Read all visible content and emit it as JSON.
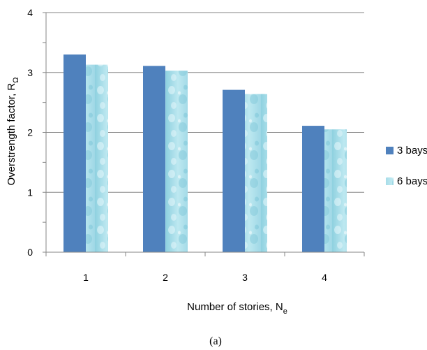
{
  "chart_data": {
    "type": "bar",
    "categories": [
      "1",
      "2",
      "3",
      "4"
    ],
    "series": [
      {
        "name": "3 bays",
        "values": [
          3.3,
          3.11,
          2.71,
          2.11
        ],
        "color": "#4f81bd",
        "fill": "solid"
      },
      {
        "name": "6 bays",
        "values": [
          3.13,
          3.03,
          2.64,
          2.05
        ],
        "color": "#a9dde8",
        "fill": "water-drop texture"
      }
    ],
    "ylim": [
      0,
      4
    ],
    "yticks": [
      "0",
      "1",
      "2",
      "3",
      "4"
    ],
    "xlabel": "Number of stories, N",
    "xlabel_sub": "e",
    "ylabel": "Overstrength factor, R",
    "ylabel_sub": "Ω",
    "grid": "horizontal major gridlines",
    "legend_position": "right",
    "caption": "(a)"
  }
}
